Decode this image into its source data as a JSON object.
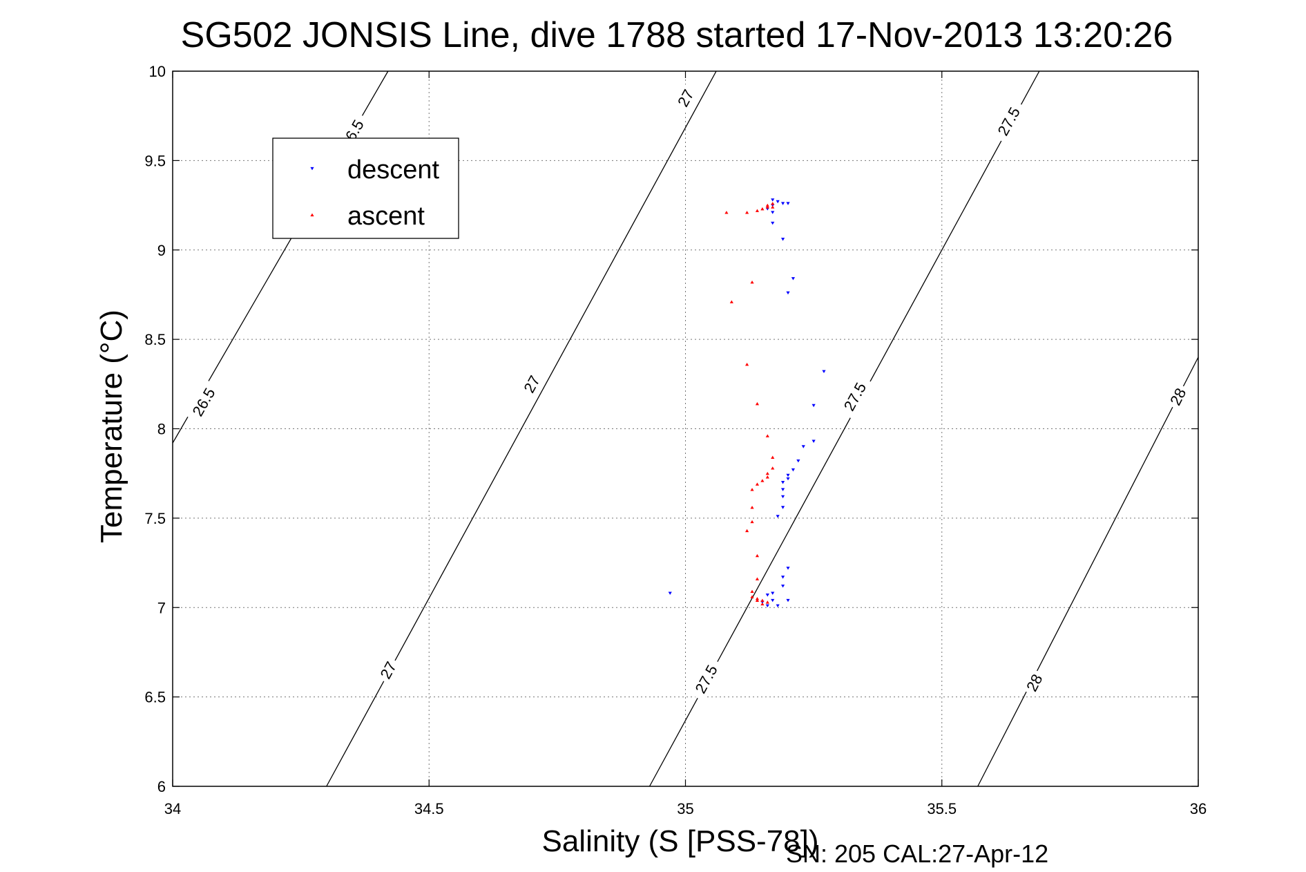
{
  "chart_data": {
    "type": "scatter",
    "title": "SG502 JONSIS Line, dive 1788 started 17-Nov-2013 13:20:26",
    "xlabel": "Salinity (S [PSS-78])",
    "ylabel": "Temperature (°C)",
    "xlim": [
      34,
      36
    ],
    "ylim": [
      6,
      10
    ],
    "x_ticks": [
      34,
      34.5,
      35,
      35.5,
      36
    ],
    "x_tick_labels": [
      "34",
      "34.5",
      "35",
      "35.5",
      "36"
    ],
    "y_ticks": [
      6,
      6.5,
      7,
      7.5,
      8,
      8.5,
      9,
      9.5,
      10
    ],
    "y_tick_labels": [
      "6",
      "6.5",
      "7",
      "7.5",
      "8",
      "8.5",
      "9",
      "9.5",
      "10"
    ],
    "grid": true,
    "legend_position": "top-left",
    "footer": "SN: 205  CAL:27-Apr-12",
    "contours": [
      {
        "label": "26.5",
        "points": [
          [
            34.0,
            7.92
          ],
          [
            34.42,
            10.0
          ]
        ],
        "labels": [
          {
            "x": 34.06,
            "y": 8.15
          },
          {
            "x": 34.35,
            "y": 9.65
          }
        ]
      },
      {
        "label": "27",
        "points": [
          [
            34.3,
            6.0
          ],
          [
            35.06,
            10.0
          ]
        ],
        "labels": [
          {
            "x": 34.42,
            "y": 6.65
          },
          {
            "x": 34.7,
            "y": 8.25
          },
          {
            "x": 35.0,
            "y": 9.85
          }
        ]
      },
      {
        "label": "27.5",
        "points": [
          [
            34.93,
            6.0
          ],
          [
            35.69,
            10.0
          ]
        ],
        "labels": [
          {
            "x": 35.04,
            "y": 6.6
          },
          {
            "x": 35.33,
            "y": 8.18
          },
          {
            "x": 35.63,
            "y": 9.72
          }
        ]
      },
      {
        "label": "28",
        "points": [
          [
            35.57,
            6.0
          ],
          [
            36.0,
            8.4
          ]
        ],
        "labels": [
          {
            "x": 35.68,
            "y": 6.58
          },
          {
            "x": 35.96,
            "y": 8.18
          }
        ]
      }
    ],
    "series": [
      {
        "name": "descent",
        "color": "#0000ff",
        "marker": "triangle-down",
        "points": [
          [
            35.17,
            9.28
          ],
          [
            35.18,
            9.27
          ],
          [
            35.19,
            9.26
          ],
          [
            35.2,
            9.26
          ],
          [
            35.17,
            9.25
          ],
          [
            35.16,
            9.23
          ],
          [
            35.17,
            9.21
          ],
          [
            35.17,
            9.15
          ],
          [
            35.19,
            9.06
          ],
          [
            35.21,
            8.84
          ],
          [
            35.2,
            8.76
          ],
          [
            35.27,
            8.32
          ],
          [
            35.25,
            8.13
          ],
          [
            35.25,
            7.93
          ],
          [
            35.23,
            7.9
          ],
          [
            35.22,
            7.82
          ],
          [
            35.21,
            7.77
          ],
          [
            35.2,
            7.74
          ],
          [
            35.2,
            7.72
          ],
          [
            35.19,
            7.7
          ],
          [
            35.19,
            7.66
          ],
          [
            35.19,
            7.62
          ],
          [
            35.19,
            7.56
          ],
          [
            35.18,
            7.51
          ],
          [
            35.2,
            7.22
          ],
          [
            35.19,
            7.17
          ],
          [
            35.19,
            7.12
          ],
          [
            35.17,
            7.08
          ],
          [
            35.16,
            7.07
          ],
          [
            35.2,
            7.04
          ],
          [
            35.17,
            7.04
          ],
          [
            35.15,
            7.03
          ],
          [
            35.16,
            7.01
          ],
          [
            35.18,
            7.01
          ],
          [
            34.97,
            7.08
          ]
        ]
      },
      {
        "name": "ascent",
        "color": "#ff0000",
        "marker": "triangle-up",
        "points": [
          [
            35.08,
            9.21
          ],
          [
            35.12,
            9.21
          ],
          [
            35.14,
            9.22
          ],
          [
            35.15,
            9.23
          ],
          [
            35.16,
            9.24
          ],
          [
            35.16,
            9.25
          ],
          [
            35.17,
            9.24
          ],
          [
            35.17,
            9.26
          ],
          [
            35.13,
            8.82
          ],
          [
            35.09,
            8.71
          ],
          [
            35.12,
            8.36
          ],
          [
            35.14,
            8.14
          ],
          [
            35.16,
            7.96
          ],
          [
            35.17,
            7.84
          ],
          [
            35.17,
            7.78
          ],
          [
            35.16,
            7.75
          ],
          [
            35.16,
            7.73
          ],
          [
            35.15,
            7.71
          ],
          [
            35.14,
            7.69
          ],
          [
            35.13,
            7.66
          ],
          [
            35.13,
            7.56
          ],
          [
            35.13,
            7.48
          ],
          [
            35.12,
            7.43
          ],
          [
            35.14,
            7.29
          ],
          [
            35.14,
            7.16
          ],
          [
            35.13,
            7.09
          ],
          [
            35.13,
            7.06
          ],
          [
            35.14,
            7.05
          ],
          [
            35.14,
            7.04
          ],
          [
            35.15,
            7.04
          ],
          [
            35.16,
            7.03
          ],
          [
            35.15,
            7.02
          ]
        ]
      }
    ]
  }
}
